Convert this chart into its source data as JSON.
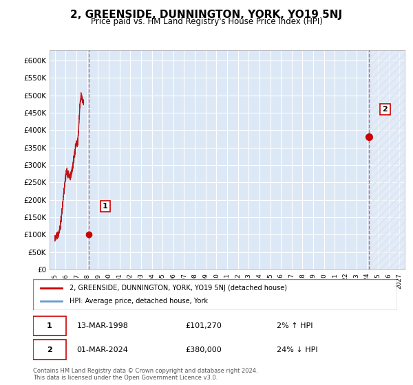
{
  "title": "2, GREENSIDE, DUNNINGTON, YORK, YO19 5NJ",
  "subtitle": "Price paid vs. HM Land Registry's House Price Index (HPI)",
  "ylabel": "",
  "background_color": "#f0f4ff",
  "plot_bg_color": "#dce8f5",
  "grid_color": "#ffffff",
  "hatch_color": "#c8d8ee",
  "sale1_date_idx": 3,
  "sale1_label": "1",
  "sale1_price": 101270,
  "sale1_date_str": "13-MAR-1998",
  "sale1_pct": "2% ↑ HPI",
  "sale2_label": "2",
  "sale2_price": 380000,
  "sale2_date_str": "01-MAR-2024",
  "sale2_pct": "24% ↓ HPI",
  "legend_label1": "2, GREENSIDE, DUNNINGTON, YORK, YO19 5NJ (detached house)",
  "legend_label2": "HPI: Average price, detached house, York",
  "footer": "Contains HM Land Registry data © Crown copyright and database right 2024.\nThis data is licensed under the Open Government Licence v3.0.",
  "line_color_red": "#cc0000",
  "line_color_blue": "#6699cc",
  "sale_dot_color": "#cc0000",
  "yticks": [
    0,
    50000,
    100000,
    150000,
    200000,
    250000,
    300000,
    350000,
    400000,
    450000,
    500000,
    550000,
    600000
  ],
  "ylim": [
    0,
    630000
  ],
  "xtick_years": [
    1995,
    1996,
    1997,
    1998,
    1999,
    2000,
    2001,
    2002,
    2003,
    2004,
    2005,
    2006,
    2007,
    2008,
    2009,
    2010,
    2011,
    2012,
    2013,
    2014,
    2015,
    2016,
    2017,
    2018,
    2019,
    2020,
    2021,
    2022,
    2023,
    2024,
    2025,
    2026,
    2027
  ]
}
